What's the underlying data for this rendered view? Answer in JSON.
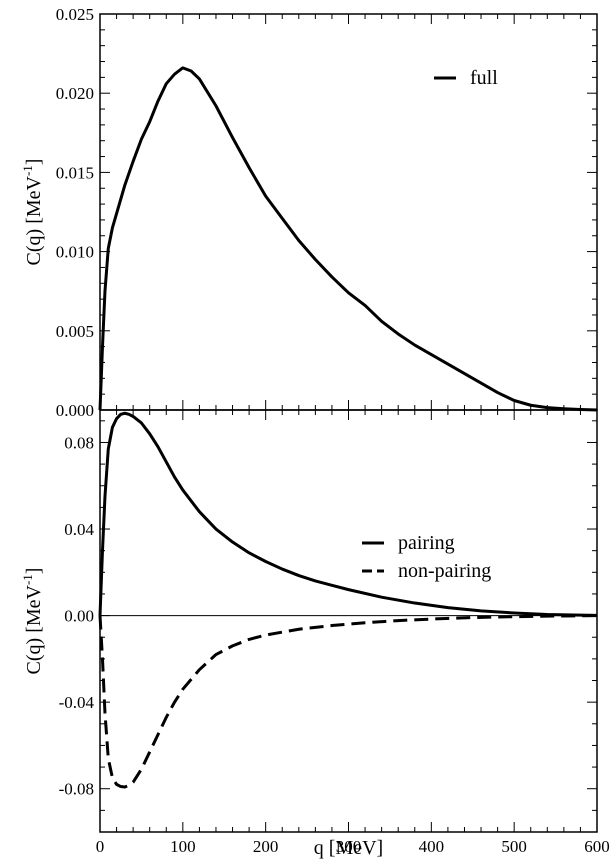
{
  "chart_data": [
    {
      "type": "line",
      "panel": "top",
      "xlim": [
        0,
        600
      ],
      "ylim": [
        0,
        0.025
      ],
      "xticks": [
        0,
        100,
        200,
        300,
        400,
        500,
        600
      ],
      "yticks": [
        0,
        0.005,
        0.01,
        0.015,
        0.02,
        0.025
      ],
      "ytick_labels": [
        "0.000",
        "0.005",
        "0.010",
        "0.015",
        "0.020",
        "0.025"
      ],
      "ylabel": "C(q) [MeV",
      "ylabel_sup": "-1",
      "ylabel_close": "]",
      "legend_position": "top-right",
      "grid": false,
      "series": [
        {
          "name": "full",
          "style": "solid",
          "x": [
            0,
            3,
            6,
            10,
            15,
            20,
            30,
            40,
            50,
            60,
            70,
            80,
            90,
            100,
            110,
            120,
            140,
            160,
            180,
            200,
            220,
            240,
            260,
            280,
            300,
            320,
            340,
            360,
            380,
            400,
            420,
            440,
            460,
            480,
            500,
            520,
            540,
            560,
            580,
            600
          ],
          "y": [
            0,
            0.004,
            0.0075,
            0.0102,
            0.0115,
            0.0124,
            0.0142,
            0.0157,
            0.0171,
            0.0182,
            0.0195,
            0.0206,
            0.0212,
            0.0216,
            0.0214,
            0.0209,
            0.0192,
            0.0172,
            0.0153,
            0.0135,
            0.0121,
            0.0107,
            0.0095,
            0.0084,
            0.0074,
            0.0066,
            0.0056,
            0.0048,
            0.0041,
            0.0035,
            0.0029,
            0.0023,
            0.0017,
            0.0011,
            0.0006,
            0.0003,
            0.00015,
            8e-05,
            3e-05,
            0
          ]
        }
      ]
    },
    {
      "type": "line",
      "panel": "bottom",
      "xlim": [
        0,
        600
      ],
      "ylim": [
        -0.1,
        0.095
      ],
      "xticks": [
        0,
        100,
        200,
        300,
        400,
        500,
        600
      ],
      "xtick_labels": [
        "0",
        "100",
        "200",
        "300",
        "400",
        "500",
        "600"
      ],
      "yticks": [
        -0.08,
        -0.04,
        0,
        0.04,
        0.08
      ],
      "ytick_labels": [
        "-0.08",
        "-0.04",
        "0.00",
        "0.04",
        "0.08"
      ],
      "xlabel": "q [MeV]",
      "ylabel": "C(q) [MeV",
      "ylabel_sup": "-1",
      "ylabel_close": "]",
      "zero_line": true,
      "legend_position": "top-right",
      "grid": false,
      "series": [
        {
          "name": "pairing",
          "style": "solid",
          "x": [
            0,
            3,
            6,
            10,
            15,
            20,
            25,
            30,
            35,
            40,
            50,
            60,
            70,
            80,
            90,
            100,
            120,
            140,
            160,
            180,
            200,
            220,
            240,
            260,
            280,
            300,
            340,
            380,
            420,
            460,
            500,
            540,
            580,
            600
          ],
          "y": [
            0,
            0.03,
            0.055,
            0.077,
            0.087,
            0.091,
            0.093,
            0.0935,
            0.093,
            0.092,
            0.089,
            0.084,
            0.078,
            0.071,
            0.064,
            0.058,
            0.048,
            0.04,
            0.034,
            0.029,
            0.025,
            0.0215,
            0.0185,
            0.016,
            0.014,
            0.012,
            0.0085,
            0.0058,
            0.0037,
            0.0022,
            0.0012,
            0.0005,
            0.0002,
            0.0001
          ]
        },
        {
          "name": "non-pairing",
          "style": "dashed",
          "x": [
            0,
            3,
            6,
            10,
            15,
            20,
            25,
            30,
            35,
            40,
            50,
            60,
            70,
            80,
            90,
            100,
            120,
            140,
            160,
            180,
            200,
            240,
            280,
            320,
            360,
            400,
            450,
            500,
            550,
            600
          ],
          "y": [
            0,
            -0.02,
            -0.045,
            -0.066,
            -0.075,
            -0.078,
            -0.079,
            -0.0792,
            -0.0785,
            -0.077,
            -0.071,
            -0.063,
            -0.055,
            -0.047,
            -0.04,
            -0.034,
            -0.025,
            -0.018,
            -0.014,
            -0.011,
            -0.009,
            -0.0063,
            -0.0046,
            -0.0033,
            -0.0023,
            -0.0016,
            -0.0009,
            -0.0005,
            -0.0002,
            0
          ]
        }
      ]
    }
  ]
}
